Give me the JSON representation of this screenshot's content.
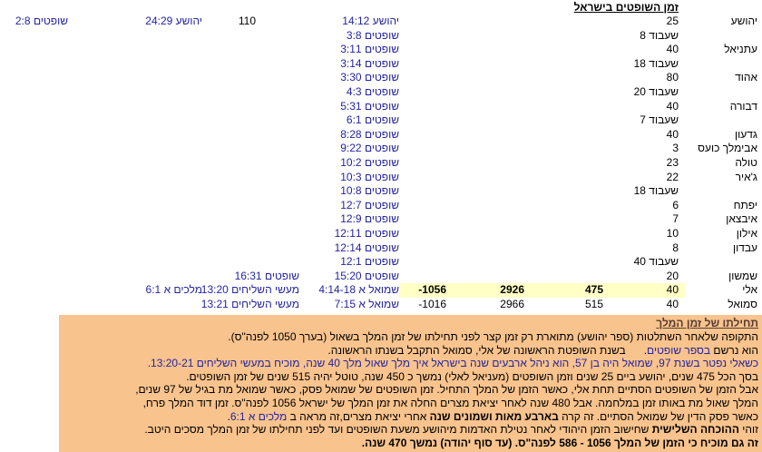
{
  "page_title": "זמן השופטים בישראל",
  "colors": {
    "link": "#2424a0",
    "highlight": "#ffffc6",
    "note_bg": "#f8c38d",
    "note_title": "#553b33"
  },
  "table": {
    "rows": [
      {
        "name": "יהושע",
        "years": "25",
        "ref": "יהושע 14:12",
        "c7": {
          "t": "110",
          "link": false,
          "pad": true
        },
        "c8": {
          "t": "יהושע 24:29",
          "link": true
        },
        "c9": {
          "t": "שופטים 2:8",
          "link": true
        }
      },
      {
        "years": "שעבוד 8",
        "ref": "שופטים 3:8"
      },
      {
        "name": "עתניאל",
        "years": "40",
        "ref": "שופטים 3:11"
      },
      {
        "years": "שעבוד 18",
        "ref": "שופטים 3:14"
      },
      {
        "name": "אהוד",
        "years": "80",
        "ref": "שופטים 3:30"
      },
      {
        "years": "שעבוד 20",
        "ref": "שופטים 4:3"
      },
      {
        "name": "דבורה",
        "years": "40",
        "ref": "שופטים 5:31"
      },
      {
        "years": "שעבוד 7",
        "ref": "שופטים 6:1"
      },
      {
        "name": "גדעון",
        "years": "40",
        "ref": "שופטים 8:28"
      },
      {
        "name": "אבימלך כועס",
        "years": "3",
        "ref": "שופטים 9:22"
      },
      {
        "name": "טולה",
        "years": "23",
        "ref": "שופטים 10:2"
      },
      {
        "name": "ג'איר",
        "years": "22",
        "ref": "שופטים 10:3"
      },
      {
        "years": "שעבוד 18",
        "ref": "שופטים 10:8"
      },
      {
        "name": "יפתח",
        "years": "6",
        "ref": "שופטים 12:7"
      },
      {
        "name": "איבצאן",
        "years": "7",
        "ref": "שופטים 12:9"
      },
      {
        "name": "אילון",
        "years": "10",
        "ref": "שופטים 12:11"
      },
      {
        "name": "עבדון",
        "years": "8",
        "ref": "שופטים 12:14"
      },
      {
        "years": "שעבוד 40",
        "ref": "שופטים 12:1"
      },
      {
        "name": "שמשון",
        "years": "20",
        "ref": "שופטים 15:20",
        "c7": {
          "t": "שופטים 16:31",
          "link": true
        }
      },
      {
        "name": "אלי",
        "years": "40",
        "n1": "475",
        "n2": "2926",
        "n3": "-1056",
        "ref": "שמואל א 4:14-18",
        "c7": {
          "t": "מעשי השליחים 13:20",
          "link": true
        },
        "c8": {
          "t": "מלכים א 6:1",
          "link": true
        },
        "hl": true
      },
      {
        "name": "סמואל",
        "years": "40",
        "n1": "515",
        "n2": "2966",
        "n3": "-1016",
        "ref": "שמואל א 7:15",
        "c7": {
          "t": "מעשי השליחים 13:21",
          "link": true
        }
      }
    ]
  },
  "note": {
    "title": "תחילתו של זמן המלך",
    "lines": [
      {
        "segs": [
          {
            "t": "התקופה שלאחר השתלטות (ספר יהושע) מתוארת רק זמן קצר לפני תחילתו של זמן המלך בשאול (בערך 1050 לפנה\"ס)."
          }
        ]
      },
      {
        "segs": [
          {
            "t": "הוא נרשם "
          },
          {
            "t": "בספר שופטים",
            "s": "l"
          },
          {
            "t": "."
          },
          {
            "s": "g"
          },
          {
            "t": "בשנת השופטת הראשונה של אלי, סמואל התקבל בשנתו הראשונה."
          }
        ]
      },
      {
        "cls": "blue",
        "segs": [
          {
            "t": "כשאלי נפטר בשנת 97, שמואל היה בן 57, הוא ניהל ארבעים שנה בישראל איך מלך שאול מלך 40 שנה, מוכיח ב"
          },
          {
            "t": "מעשי השליחים 13:20-21",
            "s": "l"
          },
          {
            "t": "."
          }
        ]
      },
      {
        "segs": [
          {
            "t": "בסך הכל 475 שנים, יהושע ביים 25 שנים וזמן השופטים (מעניאל לאלי) נמשך כ 450 שנה, טוטל יהיה 515 שנים של זמן השופטים."
          }
        ]
      },
      {
        "segs": [
          {
            "t": "אבל הזמן של השופטים הסתיים תחת אלי, כאשר הזמן של המלך התחיל. זמן השופטים של שמואל פסק, כאשר שמואל מת בגיל של 97 שנים,"
          }
        ]
      },
      {
        "segs": [
          {
            "t": "המלך שאול מת באותו זמן במלחמה. אבל 480 שנה לאחר יציאת מצרים החלה את זמן המלך של ישראל 1056 לפנה\"ס. זמן דוד המלך פרח,"
          }
        ]
      },
      {
        "segs": [
          {
            "t": "כאשר פסק הדין של שמואל הסתיים. זה קרה "
          },
          {
            "t": "בארבע מאות ושמונים שנה",
            "s": "b"
          },
          {
            "t": " אחרי יציאת מצרים,זה מראה ב "
          },
          {
            "t": "מלכים א 6:1",
            "s": "l"
          },
          {
            "t": "."
          }
        ]
      },
      {
        "segs": [
          {
            "t": "זוהי "
          },
          {
            "t": "ההוכחה השלישית",
            "s": "b"
          },
          {
            "t": " שחישוב הזמן היהודי לאחר נטילת האדמות מיהושע משעת השופטים ועד לפני תחילתו של זמן המלך מסכים היטב."
          }
        ]
      },
      {
        "segs": [
          {
            "t": "זה גם מוכיח כי הזמן של המלך 1056 - 586 לפנה\"ס. (עד סוף יהודה) נמשך 470 שנה.",
            "s": "b"
          }
        ]
      }
    ]
  }
}
